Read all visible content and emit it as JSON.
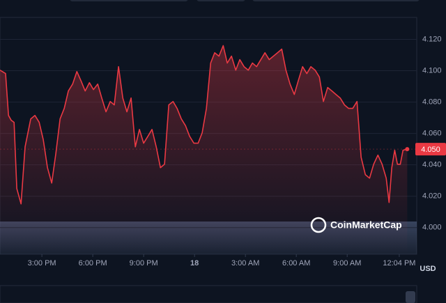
{
  "chart_data": {
    "type": "line",
    "color": "#ea3943",
    "x": [
      0.53,
      0.86,
      1.03,
      1.19,
      1.36,
      1.52,
      1.77,
      2.01,
      2.34,
      2.59,
      2.84,
      3.08,
      3.33,
      3.58,
      3.82,
      4.07,
      4.32,
      4.56,
      4.81,
      5.06,
      5.3,
      5.55,
      5.8,
      6.04,
      6.29,
      6.53,
      6.78,
      7.03,
      7.27,
      7.52,
      7.77,
      8.01,
      8.26,
      8.51,
      8.75,
      9.0,
      9.25,
      9.49,
      9.74,
      9.99,
      10.23,
      10.48,
      10.73,
      10.97,
      11.22,
      11.47,
      11.71,
      11.96,
      12.21,
      12.45,
      12.7,
      12.95,
      13.19,
      13.44,
      13.69,
      13.93,
      14.18,
      14.43,
      14.67,
      14.92,
      15.17,
      15.41,
      15.66,
      15.91,
      16.15,
      16.4,
      16.65,
      16.89,
      17.14,
      17.39,
      17.63,
      17.88,
      18.12,
      18.37,
      18.62,
      18.86,
      19.11,
      19.36,
      19.6,
      19.85,
      20.1,
      20.34,
      20.59,
      20.84,
      21.08,
      21.33,
      21.58,
      21.82,
      22.07,
      22.32,
      22.56,
      22.81,
      23.06,
      23.3,
      23.47,
      23.63,
      23.8,
      23.96,
      24.13,
      24.29,
      24.54
    ],
    "values": [
      4.1004,
      4.0982,
      4.0715,
      4.0684,
      4.0671,
      4.0249,
      4.0151,
      4.0515,
      4.0693,
      4.0715,
      4.0671,
      4.056,
      4.0382,
      4.0284,
      4.0471,
      4.0693,
      4.076,
      4.0871,
      4.0915,
      4.0995,
      4.0937,
      4.0871,
      4.0924,
      4.088,
      4.0915,
      4.0826,
      4.0738,
      4.0804,
      4.0782,
      4.1026,
      4.0826,
      4.0738,
      4.0826,
      4.0515,
      4.0626,
      4.0538,
      4.0582,
      4.0626,
      4.0515,
      4.0382,
      4.0404,
      4.0782,
      4.0804,
      4.076,
      4.0693,
      4.0649,
      4.0582,
      4.0538,
      4.0538,
      4.0604,
      4.076,
      4.1049,
      4.1115,
      4.1093,
      4.116,
      4.1049,
      4.1093,
      4.1004,
      4.1071,
      4.1026,
      4.1004,
      4.1049,
      4.1026,
      4.1071,
      4.1115,
      4.1071,
      4.1093,
      4.1115,
      4.1138,
      4.1004,
      4.0915,
      4.0849,
      4.0937,
      4.1026,
      4.0982,
      4.1026,
      4.1004,
      4.096,
      4.0804,
      4.0893,
      4.0871,
      4.0849,
      4.0826,
      4.0782,
      4.076,
      4.076,
      4.0804,
      4.0448,
      4.0337,
      4.0315,
      4.0404,
      4.0462,
      4.0404,
      4.0315,
      4.016,
      4.0382,
      4.0493,
      4.0404,
      4.0404,
      4.0493,
      4.05
    ],
    "xlim": [
      0.53,
      25.1
    ],
    "xticks": [
      {
        "value": 3,
        "label": "3:00 PM"
      },
      {
        "value": 6,
        "label": "6:00 PM"
      },
      {
        "value": 9,
        "label": "9:00 PM"
      },
      {
        "value": 12,
        "label": "18"
      },
      {
        "value": 15,
        "label": "3:00 AM"
      },
      {
        "value": 18,
        "label": "6:00 AM"
      },
      {
        "value": 21,
        "label": "9:00 AM"
      },
      {
        "value": 24.07,
        "label": "12:04 PM"
      }
    ],
    "ylim": [
      3.983,
      4.134
    ],
    "yticks": [
      {
        "value": 4.0,
        "label": "4.000"
      },
      {
        "value": 4.02,
        "label": "4.020"
      },
      {
        "value": 4.04,
        "label": "4.040"
      },
      {
        "value": 4.06,
        "label": "4.060"
      },
      {
        "value": 4.08,
        "label": "4.080"
      },
      {
        "value": 4.1,
        "label": "4.100"
      },
      {
        "value": 4.12,
        "label": "4.120"
      }
    ],
    "grid": true,
    "current_price": {
      "value": 4.05,
      "label": "4.050"
    },
    "y_unit": "USD",
    "watermark": "CoinMarketCap"
  }
}
